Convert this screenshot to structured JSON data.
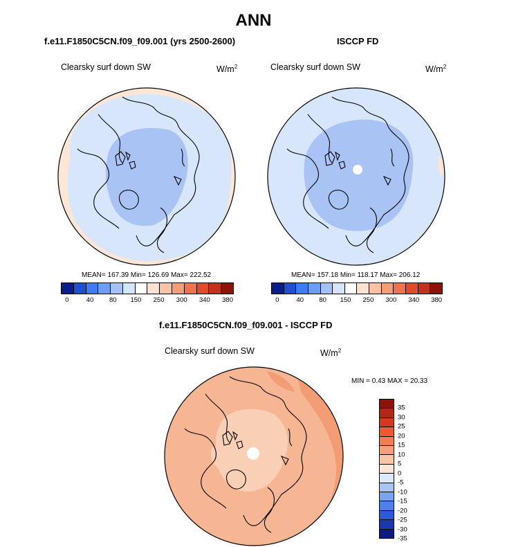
{
  "main_title": "ANN",
  "panels": {
    "model": {
      "title": "f.e11.F1850C5CN.f09_f09.001 (yrs 2500-2600)",
      "var_label": "Clearsky surf down SW",
      "units": "W/m",
      "units_exp": "2",
      "stats": "MEAN= 167.39  Min= 126.69  Max= 222.52"
    },
    "obs": {
      "title": "ISCCP FD",
      "var_label": "Clearsky surf down SW",
      "units": "W/m",
      "units_exp": "2",
      "stats": "MEAN= 157.18  Min= 118.17  Max= 206.12"
    },
    "diff": {
      "title": "f.e11.F1850C5CN.f09_f09.001 - ISCCP FD",
      "var_label": "Clearsky surf down SW",
      "units": "W/m",
      "units_exp": "2",
      "minmax": "MIN =   0.43 MAX =  20.33"
    }
  },
  "colorbar_abs": {
    "labels": [
      "0",
      "40",
      "80",
      "150",
      "250",
      "300",
      "340",
      "380"
    ],
    "colors": [
      "#0a1d8c",
      "#1f4fd1",
      "#3c7df0",
      "#6c9ef5",
      "#a3c2f7",
      "#d4e4fb",
      "#ffffff",
      "#fbe2cf",
      "#f8c3a4",
      "#f59d77",
      "#ef744d",
      "#e04c2a",
      "#c0321b",
      "#8b1408"
    ]
  },
  "colorbar_diff": {
    "labels": [
      "35",
      "30",
      "25",
      "20",
      "15",
      "10",
      "5",
      "0",
      "-5",
      "-10",
      "-15",
      "-20",
      "-25",
      "-30",
      "-35"
    ],
    "colors": [
      "#8b1408",
      "#b02814",
      "#d13a1f",
      "#ea5a35",
      "#f27d52",
      "#f5a07a",
      "#f9c6a8",
      "#fde6d6",
      "#dde8fb",
      "#a9c5f6",
      "#7aa3f2",
      "#4f7fe9",
      "#2c5bd9",
      "#1a37ad",
      "#0b1a80"
    ]
  },
  "map_colors": {
    "abs_outer": "#fde6d6",
    "abs_mid": "#d7e6fb",
    "abs_core": "#a9c3f5",
    "diff_base": "#f6b593",
    "diff_light": "#f9cfb6",
    "diff_dark": "#f29c74",
    "pole": "#ffffff"
  }
}
